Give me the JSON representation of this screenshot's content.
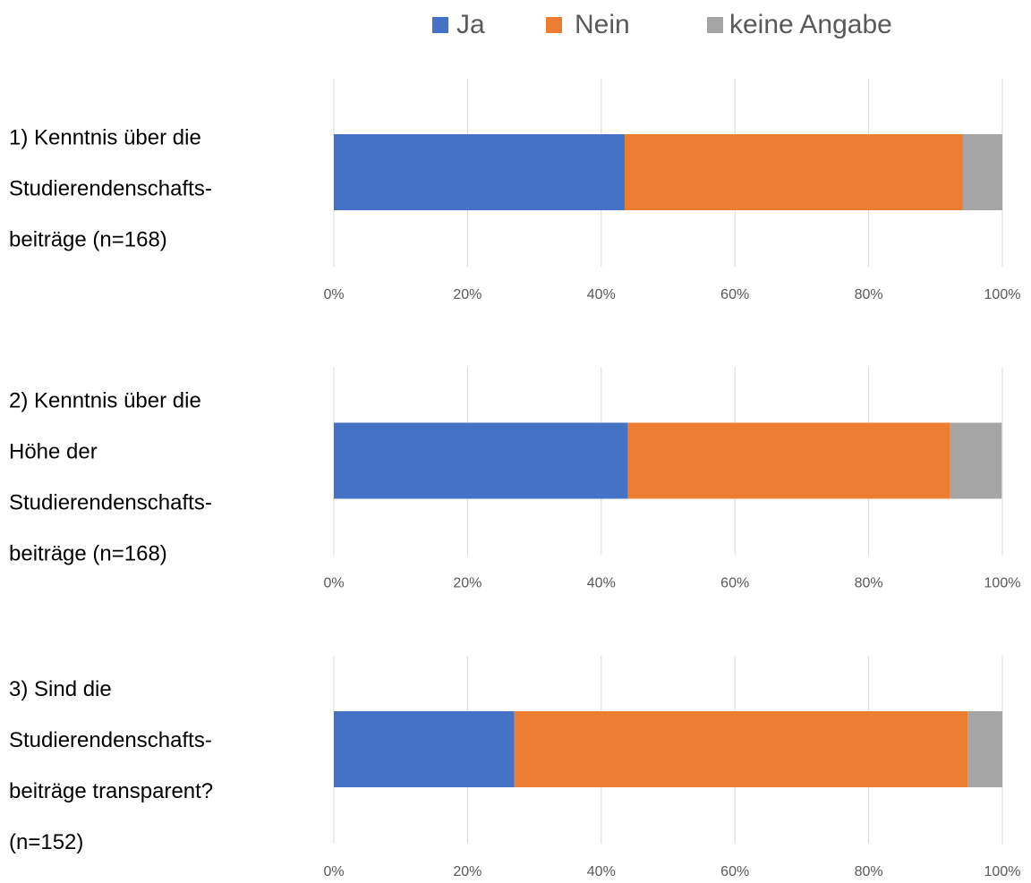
{
  "chart_data": {
    "type": "bar",
    "orientation": "horizontal",
    "stacked": true,
    "categories": [
      "1) Kenntnis über die\nStudierendenschafts-\nbeiträge (n=168)",
      "2) Kenntnis über die\nHöhe der\nStudierendenschafts-\nbeiträge (n=168)",
      "3) Sind die\nStudierendenschafts-\nbeiträge transparent?\n(n=152)"
    ],
    "series": [
      {
        "name": "Ja",
        "color": "#4472c4",
        "values": [
          43.5,
          44.0,
          27.0
        ]
      },
      {
        "name": "Nein",
        "color": "#ed7d31",
        "values": [
          50.6,
          48.2,
          67.8
        ]
      },
      {
        "name": "keine Angabe",
        "color": "#a5a5a5",
        "values": [
          5.9,
          7.7,
          5.2
        ]
      }
    ],
    "xlim": [
      0,
      100
    ],
    "xticks": [
      {
        "value": 0,
        "label": "0%"
      },
      {
        "value": 20,
        "label": "20%"
      },
      {
        "value": 40,
        "label": "40%"
      },
      {
        "value": 60,
        "label": "60%"
      },
      {
        "value": 80,
        "label": "80%"
      },
      {
        "value": 100,
        "label": "100%"
      }
    ],
    "grid": true,
    "legend": "top"
  }
}
